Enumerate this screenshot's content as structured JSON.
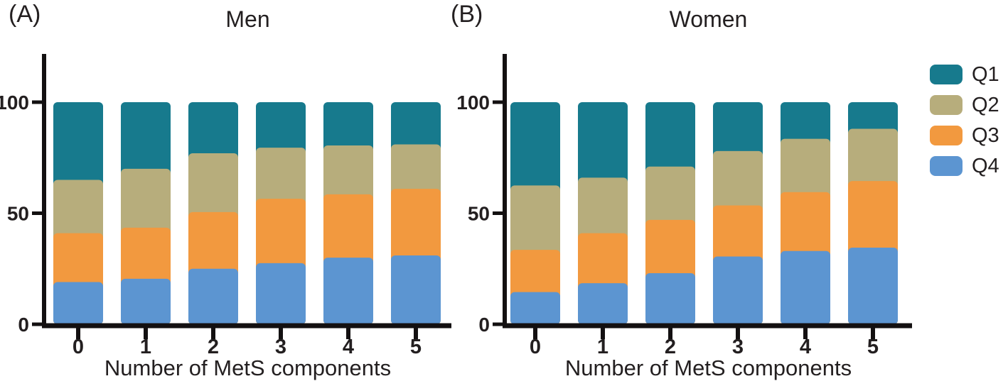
{
  "figure": {
    "background": "#ffffff",
    "text_color": "#231f20",
    "axis_color": "#131011"
  },
  "legend": {
    "position": "top-right",
    "items": [
      {
        "label": "Q1",
        "color": "#177A8D"
      },
      {
        "label": "Q2",
        "color": "#B7AD7C"
      },
      {
        "label": "Q3",
        "color": "#F2993F"
      },
      {
        "label": "Q4",
        "color": "#5C95D1"
      }
    ]
  },
  "chart_data": [
    {
      "panel_label": "(A)",
      "title": "Men",
      "type": "bar",
      "stacked": true,
      "units": "percent",
      "categories": [
        "0",
        "1",
        "2",
        "3",
        "4",
        "5"
      ],
      "xlabel": "Number of MetS components",
      "ylabel": "",
      "yticks": [
        0,
        50,
        100
      ],
      "ylim": [
        0,
        122
      ],
      "grid": false,
      "series": [
        {
          "name": "Q4",
          "color": "#5C95D1",
          "values": [
            19,
            20.5,
            25,
            27.5,
            30,
            31
          ]
        },
        {
          "name": "Q3",
          "color": "#F2993F",
          "values": [
            22,
            23,
            25.5,
            29,
            28.5,
            30
          ]
        },
        {
          "name": "Q2",
          "color": "#B7AD7C",
          "values": [
            24,
            26.5,
            26.5,
            23,
            22,
            20
          ]
        },
        {
          "name": "Q1",
          "color": "#177A8D",
          "values": [
            35,
            30,
            23,
            20.5,
            19.5,
            19
          ]
        }
      ]
    },
    {
      "panel_label": "(B)",
      "title": "Women",
      "type": "bar",
      "stacked": true,
      "units": "percent",
      "categories": [
        "0",
        "1",
        "2",
        "3",
        "4",
        "5"
      ],
      "xlabel": "Number of MetS components",
      "ylabel": "",
      "yticks": [
        0,
        50,
        100
      ],
      "ylim": [
        0,
        122
      ],
      "grid": false,
      "series": [
        {
          "name": "Q4",
          "color": "#5C95D1",
          "values": [
            14.5,
            18.5,
            23,
            30.5,
            33,
            34.5
          ]
        },
        {
          "name": "Q3",
          "color": "#F2993F",
          "values": [
            19,
            22.5,
            24,
            23,
            26.5,
            30
          ]
        },
        {
          "name": "Q2",
          "color": "#B7AD7C",
          "values": [
            29,
            25,
            24,
            24.5,
            24,
            23.5
          ]
        },
        {
          "name": "Q1",
          "color": "#177A8D",
          "values": [
            37.5,
            34,
            29,
            22,
            16.5,
            12
          ]
        }
      ]
    }
  ]
}
